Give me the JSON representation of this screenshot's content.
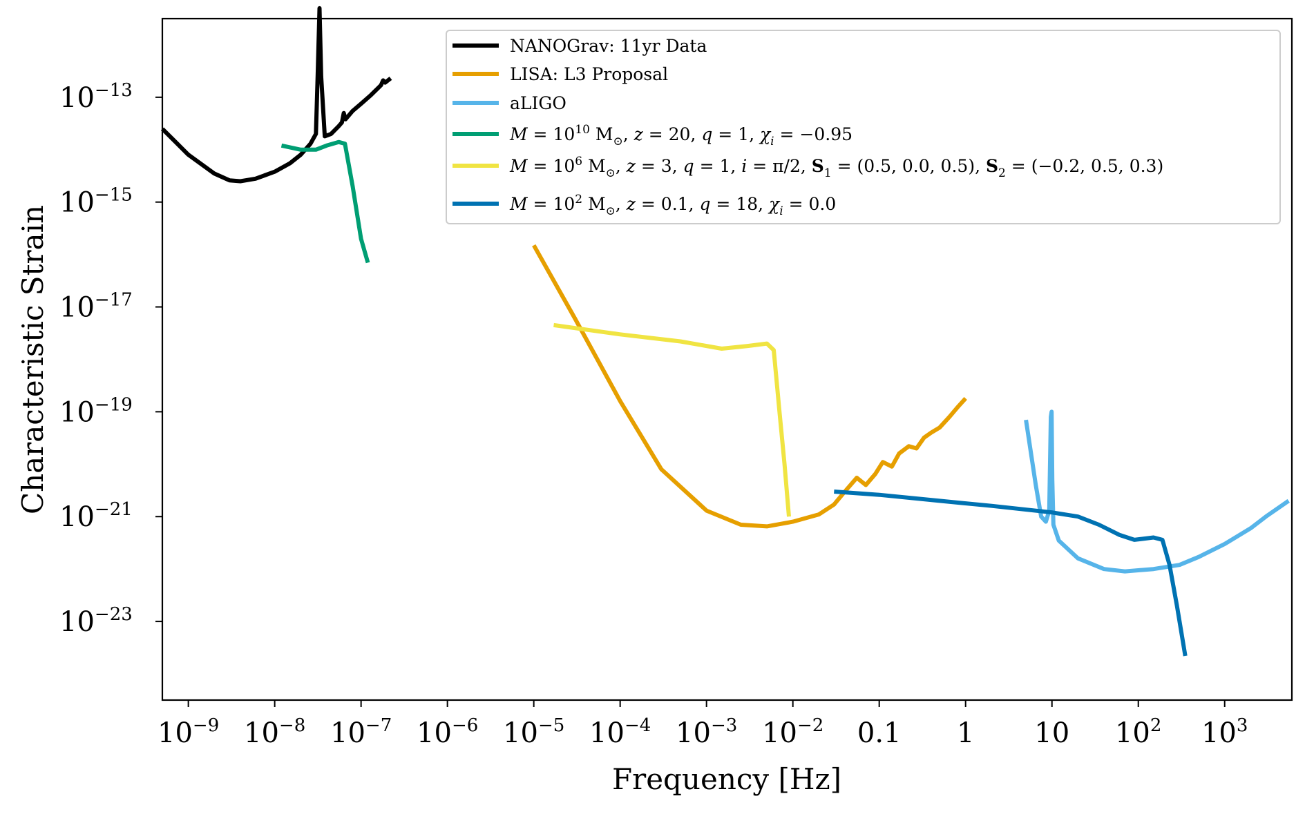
{
  "chart_data": {
    "type": "line",
    "title": "",
    "xlabel": "Frequency [Hz]",
    "ylabel": "Characteristic Strain",
    "xscale": "log",
    "yscale": "log",
    "xlim": [
      5e-10,
      6000
    ],
    "ylim": [
      3.16e-25,
      3.16e-12
    ],
    "grid": false,
    "legend_position": "top-right",
    "x_ticks": [
      {
        "value": 1e-09,
        "base": "10",
        "exp": "−9"
      },
      {
        "value": 1e-08,
        "base": "10",
        "exp": "−8"
      },
      {
        "value": 1e-07,
        "base": "10",
        "exp": "−7"
      },
      {
        "value": 1e-06,
        "base": "10",
        "exp": "−6"
      },
      {
        "value": 1e-05,
        "base": "10",
        "exp": "−5"
      },
      {
        "value": 0.0001,
        "base": "10",
        "exp": "−4"
      },
      {
        "value": 0.001,
        "base": "10",
        "exp": "−3"
      },
      {
        "value": 0.01,
        "base": "10",
        "exp": "−2"
      },
      {
        "value": 0.1,
        "base": "0.1",
        "exp": ""
      },
      {
        "value": 1,
        "base": "1",
        "exp": ""
      },
      {
        "value": 10,
        "base": "10",
        "exp": ""
      },
      {
        "value": 100,
        "base": "10",
        "exp": "2"
      },
      {
        "value": 1000,
        "base": "10",
        "exp": "3"
      }
    ],
    "y_ticks": [
      {
        "value": 1e-13,
        "base": "10",
        "exp": "−13"
      },
      {
        "value": 1e-15,
        "base": "10",
        "exp": "−15"
      },
      {
        "value": 1e-17,
        "base": "10",
        "exp": "−17"
      },
      {
        "value": 1e-19,
        "base": "10",
        "exp": "−19"
      },
      {
        "value": 1e-21,
        "base": "10",
        "exp": "−21"
      },
      {
        "value": 1e-23,
        "base": "10",
        "exp": "−23"
      }
    ],
    "series": [
      {
        "name": "NANOGrav: 11yr Data",
        "color": "#000000",
        "points": [
          [
            5e-10,
            2.5e-14
          ],
          [
            1e-09,
            8e-15
          ],
          [
            2e-09,
            3.5e-15
          ],
          [
            3e-09,
            2.6e-15
          ],
          [
            4e-09,
            2.5e-15
          ],
          [
            6e-09,
            2.8e-15
          ],
          [
            1e-08,
            3.8e-15
          ],
          [
            1.5e-08,
            5.5e-15
          ],
          [
            2e-08,
            8e-15
          ],
          [
            2.6e-08,
            1.3e-14
          ],
          [
            3e-08,
            2e-14
          ],
          [
            3.15e-08,
            2.8e-13
          ],
          [
            3.3e-08,
            5e-12
          ],
          [
            3.45e-08,
            2.5e-13
          ],
          [
            3.8e-08,
            1.8e-14
          ],
          [
            4.5e-08,
            2e-14
          ],
          [
            5.5e-08,
            2.8e-14
          ],
          [
            6e-08,
            3.3e-14
          ],
          [
            6.3e-08,
            5e-14
          ],
          [
            6.6e-08,
            3.8e-14
          ],
          [
            8e-08,
            5.5e-14
          ],
          [
            1e-07,
            7.5e-14
          ],
          [
            1.3e-07,
            1.1e-13
          ],
          [
            1.7e-07,
            1.7e-13
          ],
          [
            1.8e-07,
            2.1e-13
          ],
          [
            1.9e-07,
            1.9e-13
          ],
          [
            2.2e-07,
            2.3e-13
          ]
        ]
      },
      {
        "name": "LISA: L3 Proposal",
        "color": "#E69F00",
        "points": [
          [
            1e-05,
            1.5e-16
          ],
          [
            3e-05,
            6e-18
          ],
          [
            0.0001,
            1.6e-19
          ],
          [
            0.0003,
            8e-21
          ],
          [
            0.001,
            1.3e-21
          ],
          [
            0.0025,
            7e-22
          ],
          [
            0.005,
            6.5e-22
          ],
          [
            0.01,
            8e-22
          ],
          [
            0.02,
            1.1e-21
          ],
          [
            0.03,
            1.7e-21
          ],
          [
            0.04,
            3e-21
          ],
          [
            0.055,
            5.5e-21
          ],
          [
            0.07,
            4e-21
          ],
          [
            0.09,
            6.5e-21
          ],
          [
            0.11,
            1.1e-20
          ],
          [
            0.14,
            9e-21
          ],
          [
            0.17,
            1.6e-20
          ],
          [
            0.22,
            2.2e-20
          ],
          [
            0.27,
            2e-20
          ],
          [
            0.33,
            3.2e-20
          ],
          [
            0.4,
            4e-20
          ],
          [
            0.5,
            5e-20
          ],
          [
            0.65,
            8e-20
          ],
          [
            0.8,
            1.2e-19
          ],
          [
            1,
            1.8e-19
          ]
        ]
      },
      {
        "name": "aLIGO",
        "color": "#56B4E9",
        "points": [
          [
            5,
            7e-20
          ],
          [
            6.5,
            4e-21
          ],
          [
            7.5,
            1e-21
          ],
          [
            8.5,
            8e-22
          ],
          [
            9.3,
            1.3e-21
          ],
          [
            9.7,
            8e-20
          ],
          [
            9.9,
            1e-19
          ],
          [
            10.1,
            5e-21
          ],
          [
            10.4,
            7e-22
          ],
          [
            12,
            3.5e-22
          ],
          [
            20,
            1.6e-22
          ],
          [
            40,
            1e-22
          ],
          [
            70,
            9e-23
          ],
          [
            150,
            1e-22
          ],
          [
            300,
            1.2e-22
          ],
          [
            500,
            1.7e-22
          ],
          [
            1000,
            3e-22
          ],
          [
            2000,
            6e-22
          ],
          [
            3000,
            1e-21
          ],
          [
            5500,
            2e-21
          ]
        ]
      },
      {
        "name": "M = 10^10 M_⊙, z = 20, q = 1, χ_i = −0.95",
        "color": "#009E73",
        "points": [
          [
            1.2e-08,
            1.2e-14
          ],
          [
            2e-08,
            1e-14
          ],
          [
            3e-08,
            1e-14
          ],
          [
            4e-08,
            1.2e-14
          ],
          [
            5.5e-08,
            1.4e-14
          ],
          [
            6.5e-08,
            1.3e-14
          ],
          [
            8e-08,
            2e-15
          ],
          [
            1e-07,
            2e-16
          ],
          [
            1.2e-07,
            7e-17
          ]
        ]
      },
      {
        "name": "M = 10^6 M_⊙, z = 3, q = 1, i = π/2, S₁ = (0.5, 0.0, 0.5), S₂ = (−0.2, 0.5, 0.3)",
        "color": "#F0E442",
        "points": [
          [
            1.7e-05,
            4.5e-18
          ],
          [
            0.0001,
            3e-18
          ],
          [
            0.0005,
            2.2e-18
          ],
          [
            0.0015,
            1.6e-18
          ],
          [
            0.003,
            1.8e-18
          ],
          [
            0.005,
            2e-18
          ],
          [
            0.006,
            1.5e-18
          ],
          [
            0.007,
            1e-19
          ],
          [
            0.008,
            1e-20
          ],
          [
            0.009,
            1e-21
          ]
        ]
      },
      {
        "name": "M = 10^2 M_⊙, z = 0.1, q = 18, χ_i = 0.0",
        "color": "#0072B2",
        "points": [
          [
            0.03,
            3e-21
          ],
          [
            0.1,
            2.6e-21
          ],
          [
            0.5,
            2e-21
          ],
          [
            2,
            1.6e-21
          ],
          [
            10,
            1.2e-21
          ],
          [
            20,
            1e-21
          ],
          [
            35,
            7e-22
          ],
          [
            60,
            4.5e-22
          ],
          [
            90,
            3.6e-22
          ],
          [
            150,
            4e-22
          ],
          [
            190,
            3.6e-22
          ],
          [
            230,
            1.2e-22
          ],
          [
            280,
            2e-23
          ],
          [
            350,
            2.2e-24
          ]
        ]
      }
    ],
    "legend": [
      {
        "parts": [
          {
            "t": "NANOGrav: 11yr Data"
          }
        ],
        "color": "#000000"
      },
      {
        "parts": [
          {
            "t": "LISA: L3 Proposal"
          }
        ],
        "color": "#E69F00"
      },
      {
        "parts": [
          {
            "t": "aLIGO"
          }
        ],
        "color": "#56B4E9"
      },
      {
        "parts": [
          {
            "t": "M",
            "i": true
          },
          {
            "t": " = 10"
          },
          {
            "t": "10",
            "sup": true
          },
          {
            "t": " M"
          },
          {
            "t": "⊙",
            "sub": true
          },
          {
            "t": ", "
          },
          {
            "t": "z",
            "i": true
          },
          {
            "t": " = 20, "
          },
          {
            "t": "q",
            "i": true
          },
          {
            "t": " = 1, "
          },
          {
            "t": "χ",
            "i": true
          },
          {
            "t": "i",
            "sub": true,
            "i": true
          },
          {
            "t": " = −0.95"
          }
        ],
        "color": "#009E73"
      },
      {
        "parts": [
          {
            "t": "M",
            "i": true
          },
          {
            "t": " = 10"
          },
          {
            "t": "6",
            "sup": true
          },
          {
            "t": " M"
          },
          {
            "t": "⊙",
            "sub": true
          },
          {
            "t": ", "
          },
          {
            "t": "z",
            "i": true
          },
          {
            "t": " = 3, "
          },
          {
            "t": "q",
            "i": true
          },
          {
            "t": " = 1, "
          },
          {
            "t": "i",
            "i": true
          },
          {
            "t": " = π/2, "
          },
          {
            "t": "S",
            "b": true
          },
          {
            "t": "1",
            "sub": true
          },
          {
            "t": " = (0.5, 0.0, 0.5), "
          },
          {
            "t": "S",
            "b": true
          },
          {
            "t": "2",
            "sub": true
          },
          {
            "t": " = (−0.2, 0.5, 0.3)"
          }
        ],
        "color": "#F0E442"
      },
      {
        "parts": [
          {
            "t": "M",
            "i": true
          },
          {
            "t": " = 10"
          },
          {
            "t": "2",
            "sup": true
          },
          {
            "t": " M"
          },
          {
            "t": "⊙",
            "sub": true
          },
          {
            "t": ", "
          },
          {
            "t": "z",
            "i": true
          },
          {
            "t": " = 0.1, "
          },
          {
            "t": "q",
            "i": true
          },
          {
            "t": " = 18, "
          },
          {
            "t": "χ",
            "i": true
          },
          {
            "t": "i",
            "sub": true,
            "i": true
          },
          {
            "t": " = 0.0"
          }
        ],
        "color": "#0072B2"
      }
    ]
  }
}
